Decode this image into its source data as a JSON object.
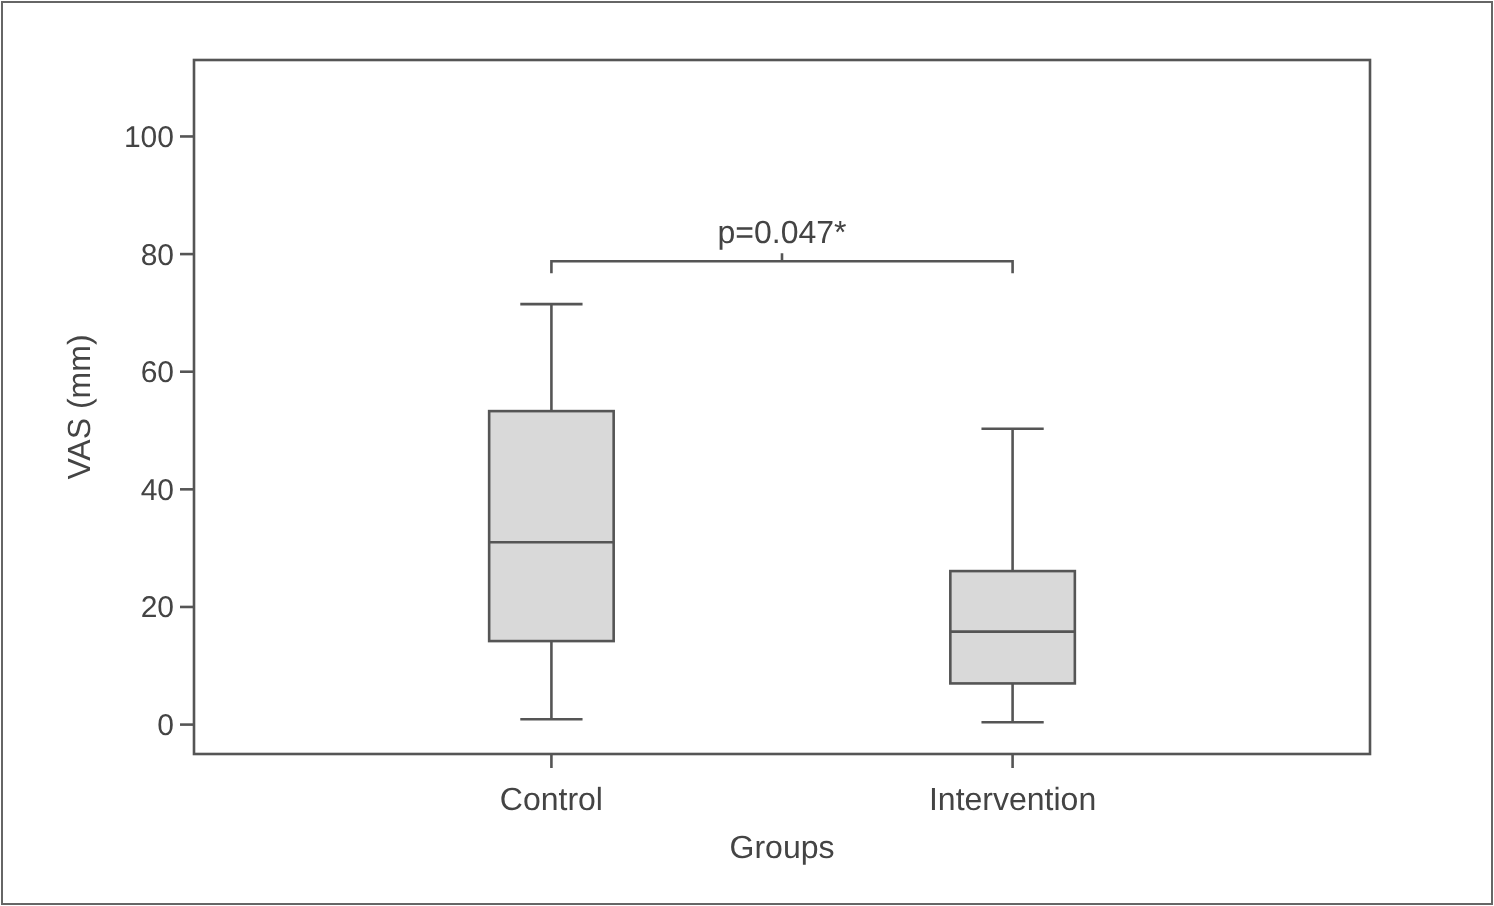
{
  "chart_data": {
    "type": "box",
    "xlabel": "Groups",
    "ylabel": "VAS (mm)",
    "categories": [
      "Control",
      "Intervention"
    ],
    "boxes": [
      {
        "low": 0.9,
        "q1": 14.2,
        "median": 31,
        "q3": 53.3,
        "high": 71.5
      },
      {
        "low": 0.4,
        "q1": 7,
        "median": 15.8,
        "q3": 26.1,
        "high": 50.3
      }
    ],
    "color": "#d9d9d9",
    "ylim": [
      -5,
      113
    ],
    "yticks": [
      0,
      20,
      40,
      60,
      80,
      100
    ],
    "grid": false,
    "annotations": [
      "p=0.047*"
    ]
  }
}
